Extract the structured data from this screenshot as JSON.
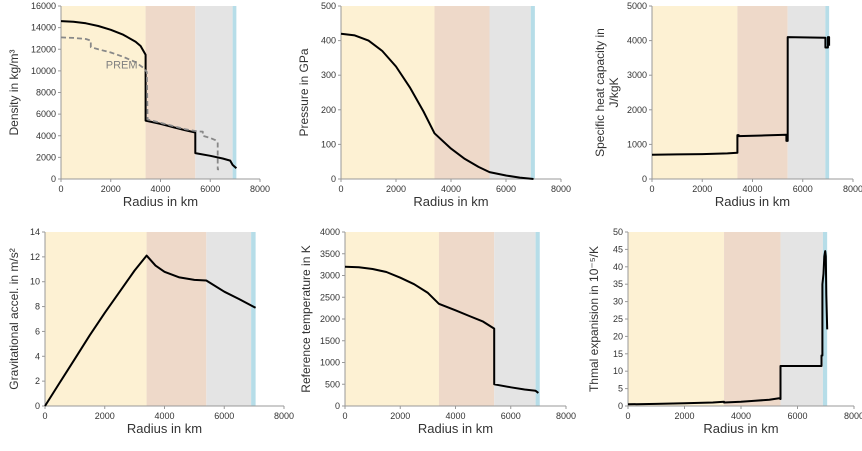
{
  "figure": {
    "colors": {
      "inner_core_band": "#fdf1d3",
      "outer_core_band": "#eed9c9",
      "mantle_band": "#e4e4e4",
      "crust_band": "#b6dde8",
      "curve": "#000000",
      "prem_curve": "#888888",
      "axis": "#999999"
    }
  },
  "chart_data": [
    {
      "type": "line",
      "xlabel": "Radius in km",
      "ylabel": "Density in kg/m³",
      "xlim": [
        0,
        8000
      ],
      "ylim": [
        0,
        16000
      ],
      "xticks": [
        0,
        2000,
        4000,
        6000,
        8000
      ],
      "yticks": [
        0,
        2000,
        4000,
        6000,
        8000,
        10000,
        12000,
        14000,
        16000
      ],
      "bands": [
        [
          0,
          3400
        ],
        [
          3400,
          5400
        ],
        [
          5400,
          6900
        ],
        [
          6900,
          7050
        ]
      ],
      "annotations": [
        {
          "text": "PREM",
          "x": 1800,
          "y": 10200
        }
      ],
      "series": [
        {
          "style": "solid",
          "x": [
            0,
            500,
            1000,
            1500,
            2000,
            2500,
            3000,
            3200,
            3400,
            3400,
            4000,
            4500,
            5000,
            5400,
            5400,
            6000,
            6500,
            6800,
            6900,
            7000,
            7050
          ],
          "y": [
            14600,
            14550,
            14400,
            14150,
            13800,
            13350,
            12700,
            12300,
            11500,
            5400,
            5100,
            4800,
            4500,
            4300,
            2400,
            2150,
            1900,
            1700,
            1300,
            1100,
            1000
          ]
        },
        {
          "name": "PREM",
          "style": "dashed",
          "x": [
            0,
            500,
            1000,
            1200,
            1200,
            1500,
            2000,
            2500,
            3000,
            3300,
            3450,
            3480,
            3480,
            4000,
            4500,
            5000,
            5500,
            5700,
            5700,
            6000,
            6200,
            6300,
            6300,
            6350
          ],
          "y": [
            13100,
            13050,
            12950,
            12800,
            12200,
            12000,
            11700,
            11300,
            10800,
            10300,
            9900,
            5500,
            5500,
            5200,
            4900,
            4600,
            4400,
            4380,
            4000,
            3800,
            3600,
            3400,
            900,
            900
          ]
        }
      ]
    },
    {
      "type": "line",
      "xlabel": "Radius in km",
      "ylabel": "Pressure in GPa",
      "xlim": [
        0,
        8000
      ],
      "ylim": [
        0,
        500
      ],
      "xticks": [
        0,
        2000,
        4000,
        6000,
        8000
      ],
      "yticks": [
        0,
        100,
        200,
        300,
        400,
        500
      ],
      "bands": [
        [
          0,
          3400
        ],
        [
          3400,
          5400
        ],
        [
          5400,
          6900
        ],
        [
          6900,
          7050
        ]
      ],
      "annotations": [],
      "series": [
        {
          "style": "solid",
          "x": [
            0,
            500,
            1000,
            1500,
            2000,
            2500,
            3000,
            3400,
            4000,
            4500,
            5000,
            5400,
            6000,
            6500,
            7000
          ],
          "y": [
            420,
            415,
            400,
            370,
            325,
            265,
            195,
            132,
            88,
            58,
            35,
            20,
            10,
            4,
            0
          ]
        }
      ]
    },
    {
      "type": "line",
      "xlabel": "Radius in km",
      "ylabel": "Specific heat capacity in J/kgK",
      "ylabel_lines": [
        "Specific heat capacity in",
        "J/kgK"
      ],
      "xlim": [
        0,
        8000
      ],
      "ylim": [
        0,
        5000
      ],
      "xticks": [
        0,
        2000,
        4000,
        6000,
        8000
      ],
      "yticks": [
        0,
        1000,
        2000,
        3000,
        4000,
        5000
      ],
      "bands": [
        [
          0,
          3400
        ],
        [
          3400,
          5400
        ],
        [
          5400,
          6900
        ],
        [
          6900,
          7050
        ]
      ],
      "annotations": [],
      "series": [
        {
          "style": "solid",
          "x": [
            0,
            1000,
            2000,
            3000,
            3400,
            3400,
            3450,
            3450,
            4500,
            5350,
            5350,
            5400,
            5400,
            6900,
            6900,
            7000,
            7000,
            7050,
            7050
          ],
          "y": [
            700,
            710,
            720,
            740,
            760,
            1270,
            1270,
            1240,
            1260,
            1280,
            1100,
            1100,
            4100,
            4080,
            3800,
            3800,
            4100,
            4100,
            3850
          ]
        }
      ]
    },
    {
      "type": "line",
      "xlabel": "Radius in km",
      "ylabel": "Gravitational accel. in m/s²",
      "xlim": [
        0,
        8000
      ],
      "ylim": [
        0,
        14
      ],
      "xticks": [
        0,
        2000,
        4000,
        6000,
        8000
      ],
      "yticks": [
        0,
        2,
        4,
        6,
        8,
        10,
        12,
        14
      ],
      "bands": [
        [
          0,
          3400
        ],
        [
          3400,
          5400
        ],
        [
          5400,
          6900
        ],
        [
          6900,
          7050
        ]
      ],
      "annotations": [],
      "series": [
        {
          "style": "solid",
          "x": [
            0,
            500,
            1000,
            1500,
            2000,
            2500,
            3000,
            3400,
            3700,
            4000,
            4500,
            5000,
            5400,
            6000,
            6500,
            7050
          ],
          "y": [
            0,
            1.9,
            3.8,
            5.7,
            7.5,
            9.2,
            10.9,
            12.1,
            11.3,
            10.8,
            10.35,
            10.15,
            10.1,
            9.2,
            8.6,
            7.9
          ]
        }
      ]
    },
    {
      "type": "line",
      "xlabel": "Radius in km",
      "ylabel": "Reference temperature in K",
      "xlim": [
        0,
        8000
      ],
      "ylim": [
        0,
        4000
      ],
      "xticks": [
        0,
        2000,
        4000,
        6000,
        8000
      ],
      "yticks": [
        0,
        500,
        1000,
        1500,
        2000,
        2500,
        3000,
        3500,
        4000
      ],
      "bands": [
        [
          0,
          3400
        ],
        [
          3400,
          5400
        ],
        [
          5400,
          6900
        ],
        [
          6900,
          7050
        ]
      ],
      "annotations": [],
      "series": [
        {
          "style": "solid",
          "x": [
            0,
            500,
            1000,
            1500,
            2000,
            2500,
            3000,
            3400,
            4000,
            4500,
            5000,
            5400,
            5400,
            6000,
            6500,
            6900,
            7000
          ],
          "y": [
            3200,
            3190,
            3150,
            3080,
            2950,
            2800,
            2600,
            2350,
            2200,
            2070,
            1940,
            1780,
            500,
            430,
            380,
            350,
            300
          ]
        }
      ]
    },
    {
      "type": "line",
      "xlabel": "Radius in km",
      "ylabel": "Thmal expanision in 10⁻⁵/K",
      "xlim": [
        0,
        8000
      ],
      "ylim": [
        0,
        50
      ],
      "xticks": [
        0,
        2000,
        4000,
        6000,
        8000
      ],
      "yticks": [
        0,
        5,
        10,
        15,
        20,
        25,
        30,
        35,
        40,
        45,
        50
      ],
      "bands": [
        [
          0,
          3400
        ],
        [
          3400,
          5400
        ],
        [
          5400,
          6900
        ],
        [
          6900,
          7050
        ]
      ],
      "annotations": [],
      "series": [
        {
          "style": "solid",
          "x": [
            0,
            1000,
            2000,
            3000,
            3400,
            3400,
            4000,
            4500,
            5000,
            5350,
            5400,
            5400,
            6000,
            6500,
            6850,
            6850,
            6880,
            6880,
            6920,
            6950,
            6980,
            7000,
            7020,
            7050
          ],
          "y": [
            0.5,
            0.6,
            0.8,
            1.0,
            1.2,
            1.0,
            1.2,
            1.5,
            1.8,
            2.2,
            2.0,
            11.5,
            11.5,
            11.5,
            11.5,
            14.5,
            14.5,
            35,
            38,
            43,
            44.5,
            43,
            32,
            22
          ]
        }
      ]
    }
  ]
}
